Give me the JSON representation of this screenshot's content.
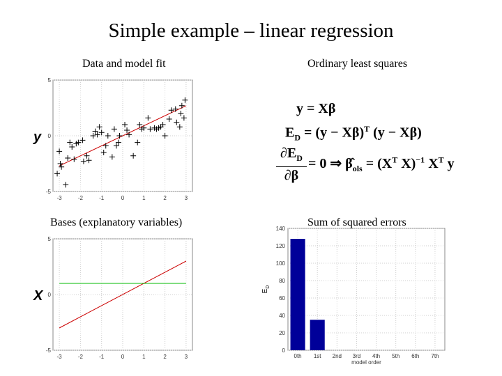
{
  "slide": {
    "title": "Simple example – linear regression",
    "captions": {
      "top_left": "Data and model fit",
      "top_right": "Ordinary least squares",
      "bottom_left": "Bases (explanatory variables)",
      "bottom_right": "Sum of squared errors"
    },
    "equations": {
      "eq1": "y = Xβ",
      "eq2_lhs": "E",
      "eq2_sub": "D",
      "eq2_rhs": " = (y − Xβ)",
      "eq2_sup": "T",
      "eq2_tail": " (y − Xβ)",
      "eq3_num": "∂E",
      "eq3_num_sub": "D",
      "eq3_den": "∂β",
      "eq3_rhs": " = 0 ⇒ ",
      "eq3_beta": "β̂",
      "eq3_beta_sub": "ols",
      "eq3_tail1": " = (X",
      "eq3_tail_sup1": "T",
      "eq3_tail2": " X)",
      "eq3_tail_sup2": "−1",
      "eq3_tail3": " X",
      "eq3_tail_sup3": "T",
      "eq3_tail4": " y"
    }
  },
  "chart_data": [
    {
      "type": "scatter",
      "title": "",
      "ylabel": "y",
      "xlim": [
        -3.3,
        3.3
      ],
      "ylim": [
        -5,
        5
      ],
      "xticks": [
        "-3",
        "-2",
        "-1",
        "0",
        "1",
        "2",
        "3"
      ],
      "yticks": [
        "5",
        "0",
        "-5"
      ],
      "points": [
        [
          -3.1,
          -3.4
        ],
        [
          -3.0,
          -1.4
        ],
        [
          -2.95,
          -2.5
        ],
        [
          -2.9,
          -2.8
        ],
        [
          -2.7,
          -4.4
        ],
        [
          -2.6,
          -2.0
        ],
        [
          -2.5,
          -0.6
        ],
        [
          -2.4,
          -1.0
        ],
        [
          -2.3,
          -2.1
        ],
        [
          -2.2,
          -0.7
        ],
        [
          -2.1,
          -0.6
        ],
        [
          -1.9,
          -0.4
        ],
        [
          -1.85,
          -2.3
        ],
        [
          -1.7,
          -1.8
        ],
        [
          -1.6,
          -2.2
        ],
        [
          -1.4,
          0.0
        ],
        [
          -1.3,
          0.4
        ],
        [
          -1.2,
          0.1
        ],
        [
          -1.1,
          0.8
        ],
        [
          -1.0,
          0.3
        ],
        [
          -0.9,
          -1.5
        ],
        [
          -0.8,
          -0.9
        ],
        [
          -0.7,
          0.0
        ],
        [
          -0.5,
          -1.9
        ],
        [
          -0.4,
          0.6
        ],
        [
          -0.3,
          -0.9
        ],
        [
          -0.2,
          -0.6
        ],
        [
          -0.15,
          0.0
        ],
        [
          0.1,
          1.0
        ],
        [
          0.2,
          0.5
        ],
        [
          0.3,
          0.1
        ],
        [
          0.5,
          -1.8
        ],
        [
          0.7,
          -0.6
        ],
        [
          0.8,
          1.0
        ],
        [
          0.9,
          0.6
        ],
        [
          1.0,
          0.7
        ],
        [
          1.2,
          1.6
        ],
        [
          1.3,
          0.6
        ],
        [
          1.5,
          0.7
        ],
        [
          1.6,
          0.6
        ],
        [
          1.7,
          0.7
        ],
        [
          1.8,
          0.8
        ],
        [
          1.9,
          1.0
        ],
        [
          2.0,
          0.0
        ],
        [
          2.2,
          1.5
        ],
        [
          2.3,
          2.3
        ],
        [
          2.5,
          2.4
        ],
        [
          2.55,
          1.2
        ],
        [
          2.7,
          0.8
        ],
        [
          2.75,
          2.0
        ],
        [
          2.8,
          2.7
        ],
        [
          2.9,
          1.6
        ],
        [
          2.95,
          3.2
        ]
      ],
      "fit_line": {
        "x": [
          -3,
          3
        ],
        "y": [
          -2.7,
          2.7
        ],
        "color": "#cc0000"
      }
    },
    {
      "type": "line",
      "title": "",
      "ylabel": "X",
      "xlim": [
        -3.3,
        3.3
      ],
      "ylim": [
        -5,
        5
      ],
      "xticks": [
        "-3",
        "-2",
        "-1",
        "0",
        "1",
        "2",
        "3"
      ],
      "yticks": [
        "5",
        "0",
        "-5"
      ],
      "series": [
        {
          "x": [
            -3,
            3
          ],
          "y": [
            -3,
            3
          ],
          "color": "#cc0000"
        },
        {
          "x": [
            -3,
            3
          ],
          "y": [
            1,
            1
          ],
          "color": "#00bb00"
        }
      ]
    },
    {
      "type": "bar",
      "title": "",
      "xlabel": "model order",
      "ylabel": "E_D",
      "categories": [
        "0th",
        "1st",
        "2nd",
        "3rd",
        "4th",
        "5th",
        "6th",
        "7th"
      ],
      "values": [
        128,
        35,
        0,
        0,
        0,
        0,
        0,
        0
      ],
      "ylim": [
        0,
        140
      ],
      "yticks": [
        "0",
        "20",
        "40",
        "60",
        "80",
        "100",
        "120",
        "140"
      ],
      "bar_color": "#000099"
    }
  ]
}
